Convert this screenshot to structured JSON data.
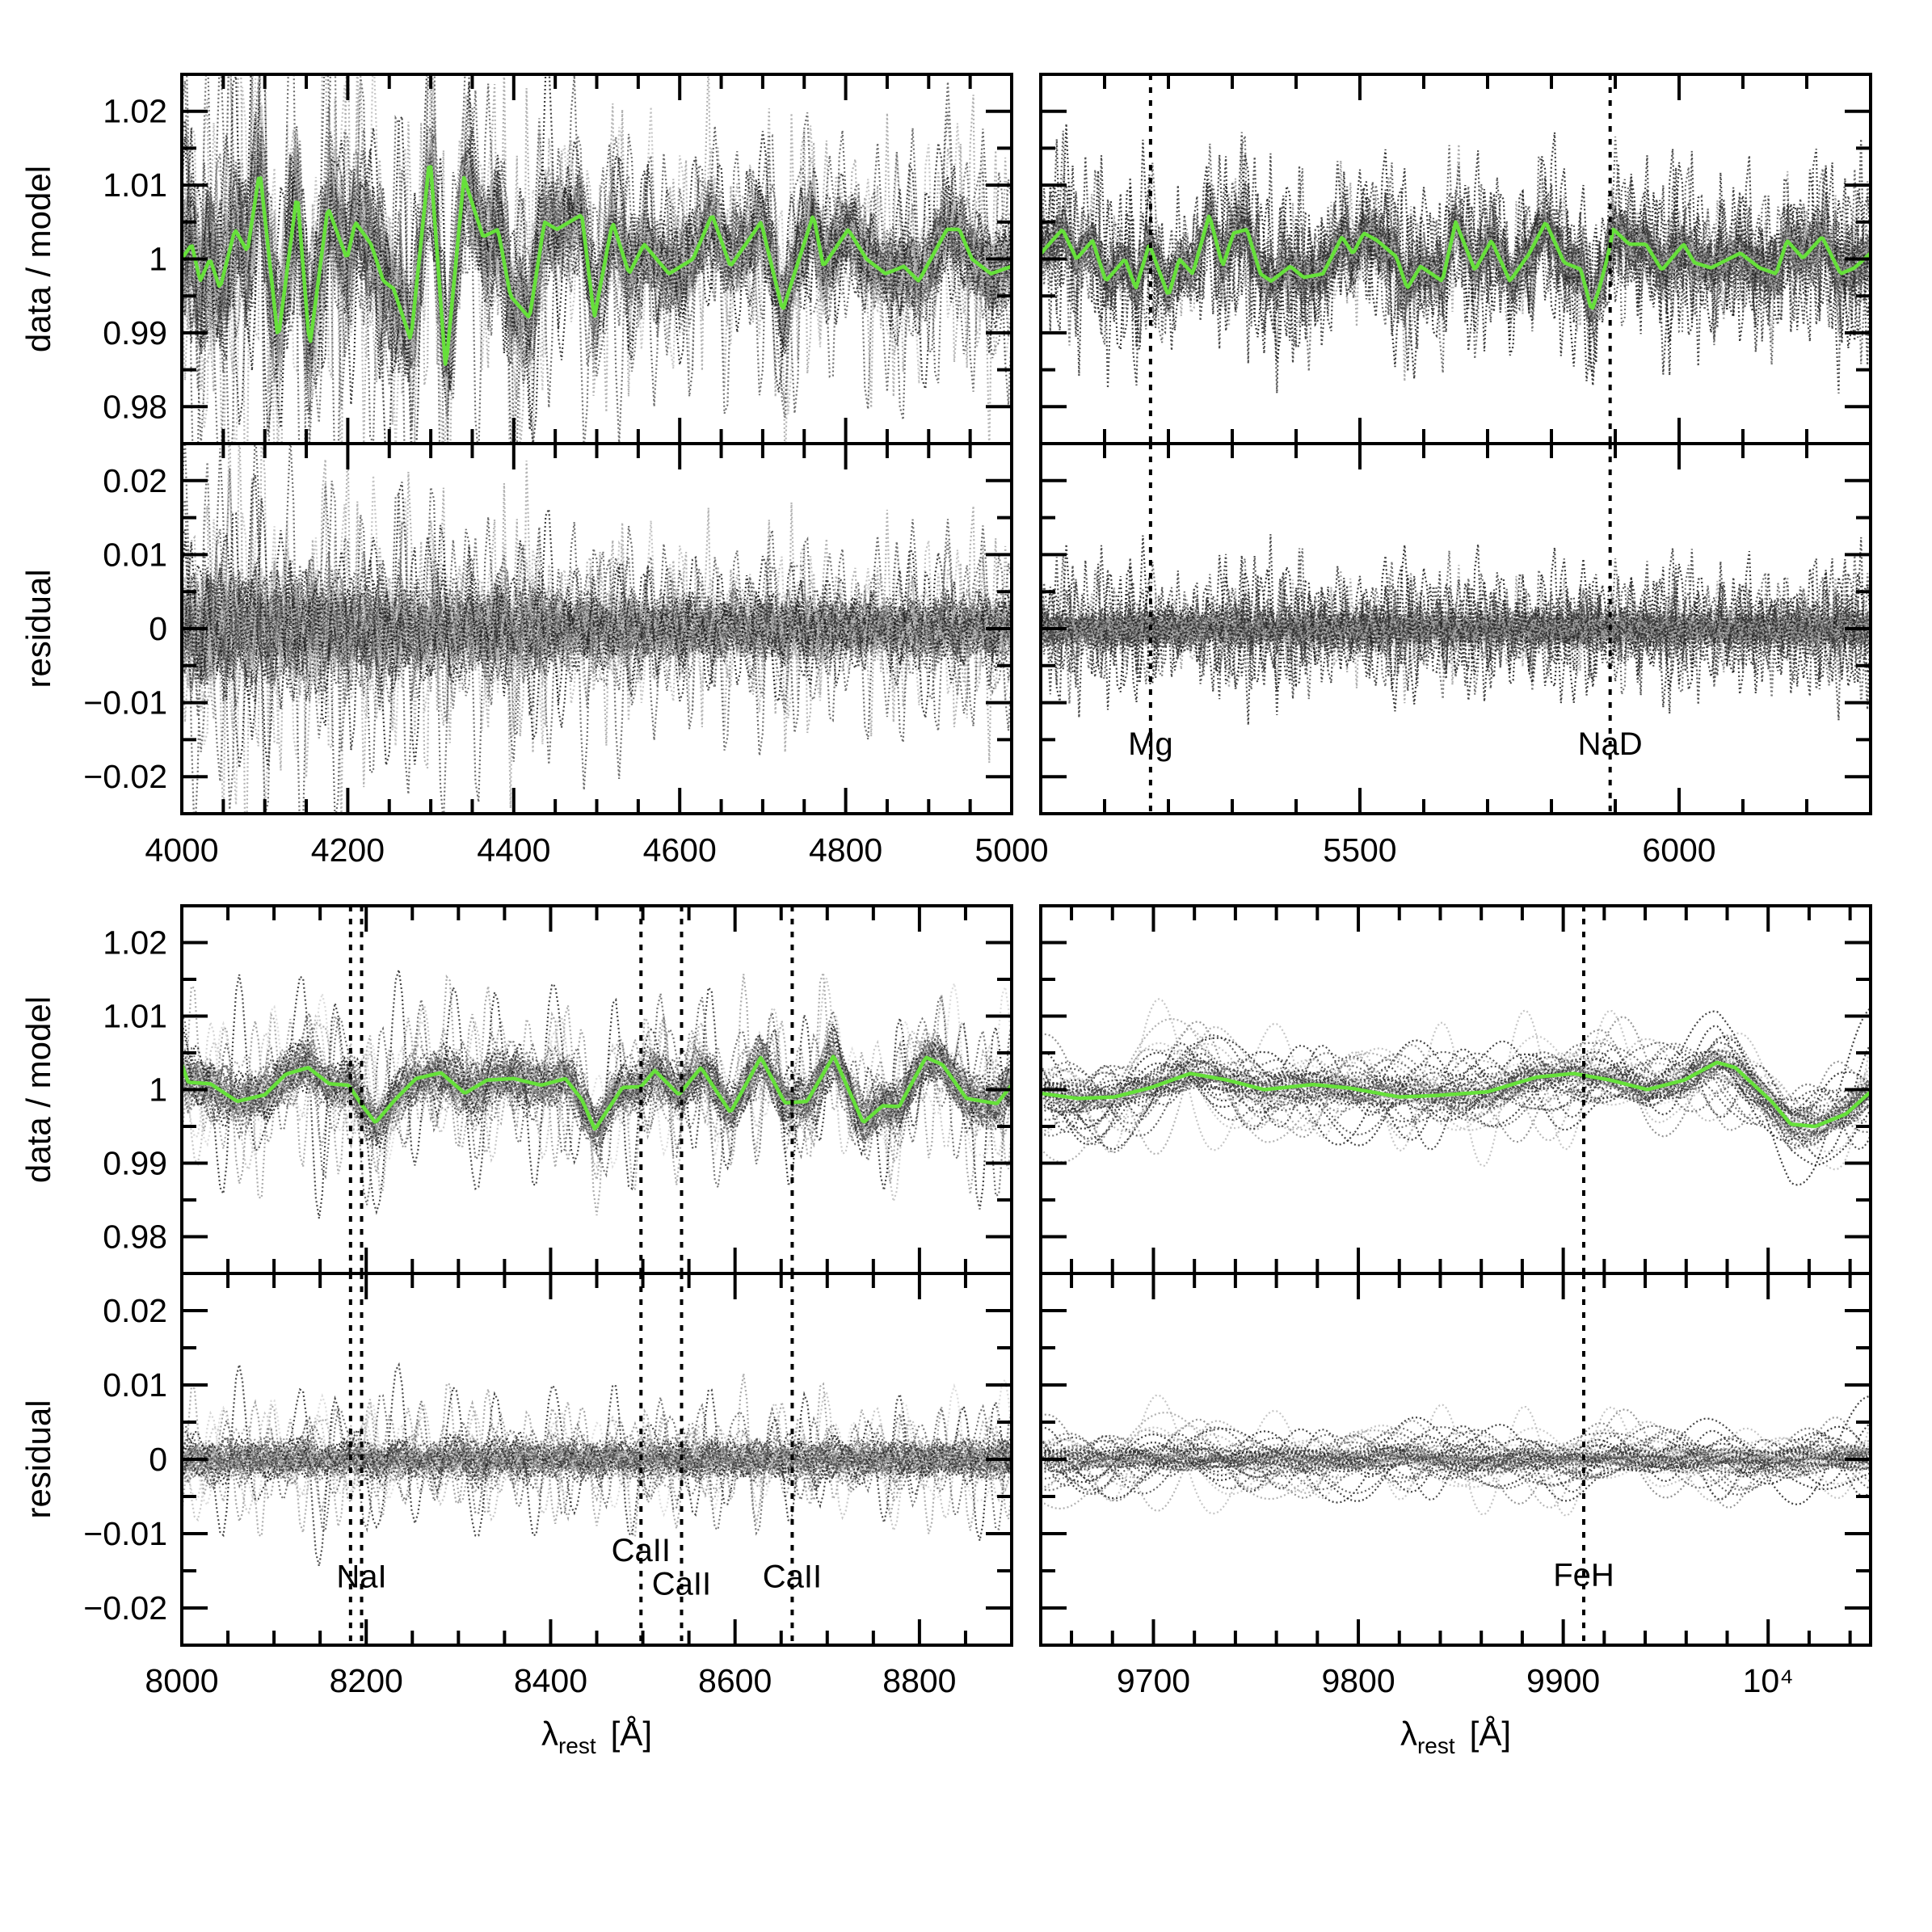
{
  "colors": {
    "mean_line": "#66e03a",
    "frame": "#000000",
    "marker_line": "#000000"
  },
  "chart_data": {
    "type": "line",
    "xlabel": {
      "symbol": "λ",
      "subscript": "rest",
      "unit": "[Å]"
    },
    "ratio_axis": {
      "ylabel": "data / model",
      "ylim": [
        0.975,
        1.025
      ],
      "major": 0.01,
      "minor": 0.005,
      "ytick_labels": [
        {
          "value": 1.02,
          "label": "1.02"
        },
        {
          "value": 1.01,
          "label": "1.01"
        },
        {
          "value": 1.0,
          "label": "1"
        },
        {
          "value": 0.99,
          "label": "0.99"
        },
        {
          "value": 0.98,
          "label": "0.98"
        }
      ]
    },
    "residual_axis": {
      "ylabel": "residual",
      "ylim": [
        -0.025,
        0.025
      ],
      "major": 0.01,
      "minor": 0.005,
      "ytick_labels": [
        {
          "value": 0.02,
          "label": "0.02"
        },
        {
          "value": 0.01,
          "label": "0.01"
        },
        {
          "value": 0,
          "label": "0"
        },
        {
          "value": -0.01,
          "label": "−0.01"
        },
        {
          "value": -0.02,
          "label": "−0.02"
        }
      ]
    },
    "panels": [
      {
        "name": "blue-optical",
        "xlim": [
          4000,
          5000
        ],
        "xtick_major": 200,
        "xtick_minor": 50,
        "show_ylabels": true,
        "show_xlabel": false,
        "xtick_labels": [
          {
            "value": 4000,
            "label": "4000"
          },
          {
            "value": 4200,
            "label": "4200"
          },
          {
            "value": 4400,
            "label": "4400"
          },
          {
            "value": 4600,
            "label": "4600"
          },
          {
            "value": 4800,
            "label": "4800"
          },
          {
            "value": 5000,
            "label": "5000"
          }
        ],
        "lines": [],
        "mean": {
          "x": [
            4000,
            4012,
            4022,
            4034,
            4046,
            4064,
            4079,
            4094,
            4116,
            4139,
            4154,
            4176,
            4199,
            4209,
            4228,
            4243,
            4255,
            4276,
            4299,
            4318,
            4340,
            4363,
            4381,
            4396,
            4419,
            4437,
            4452,
            4482,
            4497,
            4519,
            4539,
            4557,
            4587,
            4616,
            4639,
            4661,
            4698,
            4724,
            4761,
            4773,
            4803,
            4825,
            4848,
            4870,
            4888,
            4922,
            4937,
            4952,
            4975,
            5000
          ],
          "y": [
            1.0,
            1.002,
            0.997,
            1.0,
            0.996,
            1.004,
            1.001,
            1.012,
            0.989,
            1.009,
            0.988,
            1.007,
            1.0,
            1.005,
            1.002,
            0.997,
            0.996,
            0.989,
            1.014,
            0.985,
            1.011,
            1.003,
            1.004,
            0.995,
            0.992,
            1.005,
            1.004,
            1.006,
            0.992,
            1.005,
            0.998,
            1.002,
            0.998,
            1.0,
            1.006,
            0.999,
            1.005,
            0.993,
            1.006,
            0.999,
            1.004,
            1.0,
            0.998,
            0.999,
            0.997,
            1.004,
            1.004,
            1.0,
            0.998,
            0.999
          ]
        }
      },
      {
        "name": "red-optical",
        "xlim": [
          5000,
          6300
        ],
        "xtick_major": 500,
        "xtick_minor": 100,
        "show_ylabels": false,
        "show_xlabel": false,
        "xtick_labels": [
          {
            "value": 5500,
            "label": "5500"
          },
          {
            "value": 6000,
            "label": "6000"
          }
        ],
        "lines": [
          {
            "x": 5172,
            "label": "Mg"
          },
          {
            "x": 5892,
            "label": "NaD"
          }
        ],
        "mean": {
          "x": [
            5000,
            5013,
            5034,
            5056,
            5081,
            5102,
            5132,
            5149,
            5170,
            5200,
            5217,
            5238,
            5264,
            5285,
            5302,
            5323,
            5344,
            5361,
            5391,
            5412,
            5442,
            5472,
            5489,
            5506,
            5527,
            5557,
            5574,
            5595,
            5629,
            5650,
            5680,
            5706,
            5735,
            5765,
            5791,
            5820,
            5846,
            5863,
            5875,
            5888,
            5897,
            5922,
            5948,
            5973,
            6007,
            6024,
            6050,
            6096,
            6126,
            6152,
            6169,
            6194,
            6224,
            6253,
            6275,
            6300
          ],
          "y": [
            1.0007,
            1.002,
            1.004,
            1.0,
            1.0025,
            0.997,
            1.0,
            0.996,
            1.002,
            0.995,
            1.0,
            0.998,
            1.006,
            0.999,
            1.0035,
            1.004,
            0.998,
            0.997,
            0.999,
            0.9975,
            0.998,
            1.003,
            1.0007,
            1.0035,
            1.0025,
            1.0003,
            0.996,
            0.999,
            0.997,
            1.005,
            0.9985,
            1.0025,
            0.997,
            1.0007,
            1.005,
            0.9995,
            0.9986,
            0.993,
            0.996,
            1.0003,
            1.004,
            1.002,
            1.002,
            0.9985,
            1.002,
            0.9995,
            0.9988,
            1.0008,
            0.9988,
            0.998,
            1.0025,
            1.0001,
            1.003,
            0.998,
            0.9988,
            1.0008
          ]
        }
      },
      {
        "name": "calcium-triplet",
        "xlim": [
          8000,
          8900
        ],
        "xtick_major": 200,
        "xtick_minor": 50,
        "show_ylabels": true,
        "show_xlabel": true,
        "xtick_labels": [
          {
            "value": 8000,
            "label": "8000"
          },
          {
            "value": 8200,
            "label": "8200"
          },
          {
            "value": 8400,
            "label": "8400"
          },
          {
            "value": 8600,
            "label": "8600"
          },
          {
            "value": 8800,
            "label": "8800"
          }
        ],
        "lines": [
          {
            "x": 8183,
            "label": ""
          },
          {
            "x": 8195,
            "label": "NaI"
          },
          {
            "x": 8498,
            "label": "CaII"
          },
          {
            "x": 8542,
            "label": "CaII"
          },
          {
            "x": 8662,
            "label": "CaII"
          }
        ],
        "mean": {
          "x": [
            8000,
            8007,
            8031,
            8060,
            8090,
            8113,
            8137,
            8160,
            8181,
            8196,
            8210,
            8231,
            8254,
            8281,
            8307,
            8331,
            8360,
            8390,
            8416,
            8434,
            8448,
            8478,
            8498,
            8513,
            8539,
            8563,
            8595,
            8628,
            8654,
            8678,
            8707,
            8739,
            8760,
            8778,
            8807,
            8825,
            8851,
            8884,
            8900
          ],
          "y": [
            1.0034,
            1.001,
            1.0008,
            0.9984,
            0.9993,
            1.0021,
            1.003,
            1.0008,
            1.0006,
            0.9978,
            0.9955,
            0.9986,
            1.0015,
            1.0023,
            0.9995,
            1.0013,
            1.0015,
            1.0006,
            1.0015,
            0.9986,
            0.9946,
            1.0003,
            1.0004,
            1.0026,
            0.9993,
            1.003,
            0.9969,
            1.0044,
            0.9982,
            0.9984,
            1.0046,
            0.9955,
            0.9978,
            0.9977,
            1.0044,
            1.0034,
            0.9988,
            0.9981,
            1.0006
          ]
        }
      },
      {
        "name": "near-infrared",
        "xlim": [
          9645,
          10050
        ],
        "xtick_major": 100,
        "xtick_minor": 20,
        "show_ylabels": false,
        "show_xlabel": true,
        "xtick_labels": [
          {
            "value": 9700,
            "label": "9700"
          },
          {
            "value": 9800,
            "label": "9800"
          },
          {
            "value": 9900,
            "label": "9900"
          },
          {
            "value": 10000,
            "label": "10⁴"
          }
        ],
        "lines": [
          {
            "x": 9910,
            "label": "FeH"
          }
        ],
        "mean": {
          "x": [
            9645,
            9663,
            9681,
            9699,
            9718,
            9736,
            9754,
            9778,
            9796,
            9820,
            9838,
            9863,
            9887,
            9905,
            9923,
            9941,
            9959,
            9975,
            9984,
            10002,
            10011,
            10023,
            10038,
            10050
          ],
          "y": [
            0.9995,
            0.9988,
            0.999,
            1.0003,
            1.0022,
            1.0013,
            1.0,
            1.0007,
            1.0002,
            0.999,
            0.9992,
            0.9997,
            1.0017,
            1.0022,
            1.0013,
            1.0,
            1.0013,
            1.0037,
            1.003,
            0.9983,
            0.9953,
            0.995,
            0.9967,
            0.9997
          ]
        }
      }
    ]
  }
}
